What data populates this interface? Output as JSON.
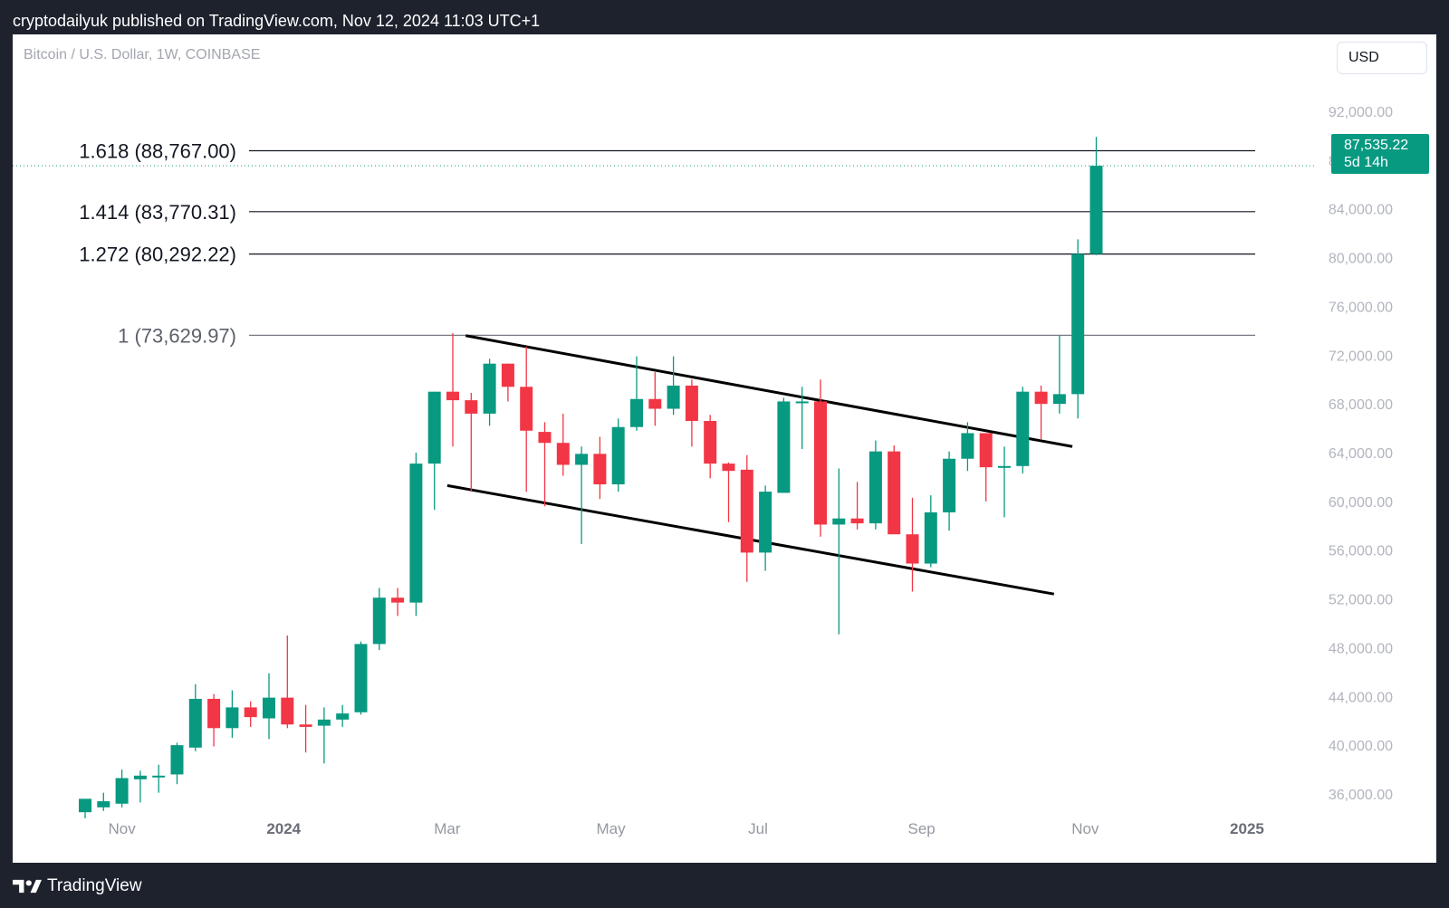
{
  "header": {
    "published_line": "cryptodailyuk published on TradingView.com, Nov 12, 2024 11:03 UTC+1"
  },
  "chart_header": {
    "symbol": "Bitcoin / U.S. Dollar, 1W, COINBASE",
    "currency_button": "USD"
  },
  "price_tag": {
    "price": "87,535.22",
    "countdown": "5d 14h"
  },
  "footer": {
    "brand": "TradingView"
  },
  "colors": {
    "up": "#089981",
    "down": "#f23645",
    "fib_line": "#131722",
    "fib_line_base": "#787b86",
    "channel": "#000000",
    "axis_text": "#b2b5be",
    "background": "#1e222d"
  },
  "chart_data": {
    "type": "candlestick",
    "interval": "1W",
    "ylim": [
      32500,
      95500
    ],
    "y_ticks": [
      {
        "value": 92000,
        "label": "92,000.00"
      },
      {
        "value": 88000,
        "label": "88,000.00"
      },
      {
        "value": 84000,
        "label": "84,000.00"
      },
      {
        "value": 80000,
        "label": "80,000.00"
      },
      {
        "value": 76000,
        "label": "76,000.00"
      },
      {
        "value": 72000,
        "label": "72,000.00"
      },
      {
        "value": 68000,
        "label": "68,000.00"
      },
      {
        "value": 64000,
        "label": "64,000.00"
      },
      {
        "value": 60000,
        "label": "60,000.00"
      },
      {
        "value": 56000,
        "label": "56,000.00"
      },
      {
        "value": 52000,
        "label": "52,000.00"
      },
      {
        "value": 48000,
        "label": "48,000.00"
      },
      {
        "value": 44000,
        "label": "44,000.00"
      },
      {
        "value": 40000,
        "label": "40,000.00"
      },
      {
        "value": 36000,
        "label": "36,000.00"
      }
    ],
    "x_ticks": [
      {
        "index": 2.0,
        "label": "Nov",
        "bold": false
      },
      {
        "index": 10.8,
        "label": "2024",
        "bold": true
      },
      {
        "index": 19.7,
        "label": "Mar",
        "bold": false
      },
      {
        "index": 28.6,
        "label": "May",
        "bold": false
      },
      {
        "index": 36.6,
        "label": "Jul",
        "bold": false
      },
      {
        "index": 45.5,
        "label": "Sep",
        "bold": false
      },
      {
        "index": 54.4,
        "label": "Nov",
        "bold": false
      },
      {
        "index": 63.2,
        "label": "2025",
        "bold": true
      }
    ],
    "candles": [
      {
        "o": 34500,
        "h": 35200,
        "l": 34000,
        "c": 35600
      },
      {
        "o": 34900,
        "h": 36100,
        "l": 34600,
        "c": 35400
      },
      {
        "o": 35200,
        "h": 38000,
        "l": 34900,
        "c": 37300
      },
      {
        "o": 37200,
        "h": 37900,
        "l": 35300,
        "c": 37500
      },
      {
        "o": 37500,
        "h": 38400,
        "l": 36100,
        "c": 37500
      },
      {
        "o": 37600,
        "h": 40200,
        "l": 36800,
        "c": 40000
      },
      {
        "o": 39800,
        "h": 45000,
        "l": 39500,
        "c": 43800
      },
      {
        "o": 43800,
        "h": 44200,
        "l": 39900,
        "c": 41400
      },
      {
        "o": 41400,
        "h": 44500,
        "l": 40600,
        "c": 43100
      },
      {
        "o": 43100,
        "h": 43600,
        "l": 41500,
        "c": 42300
      },
      {
        "o": 42200,
        "h": 45900,
        "l": 40500,
        "c": 43900
      },
      {
        "o": 43900,
        "h": 49000,
        "l": 41400,
        "c": 41700
      },
      {
        "o": 41700,
        "h": 43300,
        "l": 39400,
        "c": 41500
      },
      {
        "o": 41600,
        "h": 43100,
        "l": 38500,
        "c": 42100
      },
      {
        "o": 42100,
        "h": 43300,
        "l": 41500,
        "c": 42600
      },
      {
        "o": 42700,
        "h": 48500,
        "l": 42500,
        "c": 48300
      },
      {
        "o": 48300,
        "h": 52900,
        "l": 47800,
        "c": 52100
      },
      {
        "o": 52100,
        "h": 52900,
        "l": 50600,
        "c": 51700
      },
      {
        "o": 51700,
        "h": 64000,
        "l": 50600,
        "c": 63100
      },
      {
        "o": 63100,
        "h": 69000,
        "l": 59300,
        "c": 69000
      },
      {
        "o": 69000,
        "h": 73800,
        "l": 64500,
        "c": 68300
      },
      {
        "o": 68300,
        "h": 68900,
        "l": 60800,
        "c": 67200
      },
      {
        "o": 67200,
        "h": 71700,
        "l": 66200,
        "c": 71300
      },
      {
        "o": 71300,
        "h": 71300,
        "l": 68200,
        "c": 69400
      },
      {
        "o": 69400,
        "h": 72700,
        "l": 60800,
        "c": 65800
      },
      {
        "o": 65700,
        "h": 66500,
        "l": 59600,
        "c": 64800
      },
      {
        "o": 64800,
        "h": 67200,
        "l": 62100,
        "c": 63000
      },
      {
        "o": 63000,
        "h": 64500,
        "l": 56500,
        "c": 63900
      },
      {
        "o": 63900,
        "h": 65300,
        "l": 60200,
        "c": 61400
      },
      {
        "o": 61400,
        "h": 66800,
        "l": 60800,
        "c": 66100
      },
      {
        "o": 66100,
        "h": 71900,
        "l": 65800,
        "c": 68400
      },
      {
        "o": 68400,
        "h": 70600,
        "l": 66200,
        "c": 67600
      },
      {
        "o": 67600,
        "h": 71900,
        "l": 67100,
        "c": 69500
      },
      {
        "o": 69500,
        "h": 70000,
        "l": 64500,
        "c": 66600
      },
      {
        "o": 66600,
        "h": 67100,
        "l": 61900,
        "c": 63100
      },
      {
        "o": 63100,
        "h": 63200,
        "l": 58300,
        "c": 62500
      },
      {
        "o": 62600,
        "h": 63800,
        "l": 53400,
        "c": 55800
      },
      {
        "o": 55800,
        "h": 61300,
        "l": 54300,
        "c": 60800
      },
      {
        "o": 60700,
        "h": 68500,
        "l": 60700,
        "c": 68200
      },
      {
        "o": 68200,
        "h": 69400,
        "l": 64300,
        "c": 68200
      },
      {
        "o": 68200,
        "h": 70000,
        "l": 57100,
        "c": 58100
      },
      {
        "o": 58100,
        "h": 62700,
        "l": 49100,
        "c": 58600
      },
      {
        "o": 58600,
        "h": 61600,
        "l": 57700,
        "c": 58200
      },
      {
        "o": 58200,
        "h": 65000,
        "l": 57700,
        "c": 64100
      },
      {
        "o": 64100,
        "h": 64600,
        "l": 57500,
        "c": 57300
      },
      {
        "o": 57300,
        "h": 60300,
        "l": 52600,
        "c": 54900
      },
      {
        "o": 54900,
        "h": 60500,
        "l": 54600,
        "c": 59100
      },
      {
        "o": 59100,
        "h": 64100,
        "l": 57600,
        "c": 63500
      },
      {
        "o": 63500,
        "h": 66500,
        "l": 62500,
        "c": 65600
      },
      {
        "o": 65600,
        "h": 65600,
        "l": 60000,
        "c": 62800
      },
      {
        "o": 62900,
        "h": 64500,
        "l": 58700,
        "c": 62900
      },
      {
        "o": 62900,
        "h": 69400,
        "l": 62300,
        "c": 69000
      },
      {
        "o": 69000,
        "h": 69500,
        "l": 65100,
        "c": 68000
      },
      {
        "o": 68000,
        "h": 73600,
        "l": 67200,
        "c": 68800
      },
      {
        "o": 68800,
        "h": 81500,
        "l": 66800,
        "c": 80300
      },
      {
        "o": 80300,
        "h": 89900,
        "l": 80200,
        "c": 87535.22
      }
    ],
    "fib_levels": [
      {
        "label": "1.618 (88,767.00)",
        "value": 88767.0
      },
      {
        "label": "1.414 (83,770.31)",
        "value": 83770.31
      },
      {
        "label": "1.272 (80,292.22)",
        "value": 80292.22
      },
      {
        "label": "1 (73,629.97)",
        "value": 73629.97
      }
    ],
    "channel_lines": [
      {
        "from": {
          "index": 20.7,
          "value": 73600
        },
        "to": {
          "index": 53.7,
          "value": 64500
        }
      },
      {
        "from": {
          "index": 19.7,
          "value": 61300
        },
        "to": {
          "index": 52.7,
          "value": 52400
        }
      }
    ],
    "last_price": 87535.22
  }
}
